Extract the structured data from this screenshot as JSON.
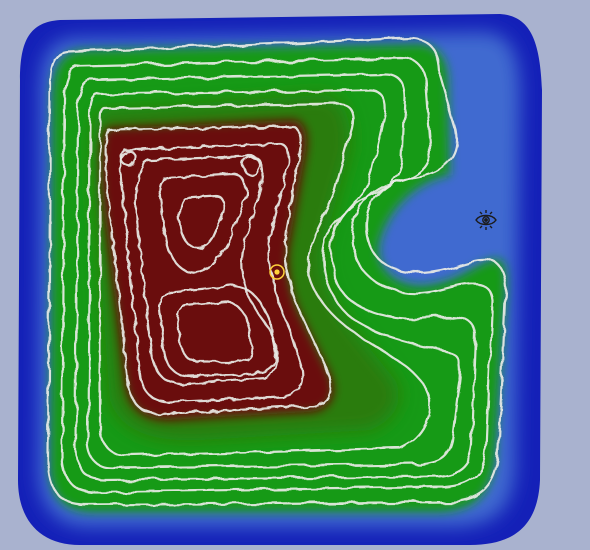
{
  "map": {
    "background_color": "#a9b2cf",
    "elevation_palette": {
      "deep_water": "#1420b8",
      "shallow_water": "#3f6ad0",
      "lowland": "#139a14",
      "midland": "#2a7c10",
      "upland": "#6b2a0d",
      "highland": "#6a0a0a"
    },
    "contour_line_color": "#e9ece6",
    "contour_interval_count": 11,
    "markers": [
      {
        "icon": "target-marker-icon",
        "color": "#ffd23a"
      },
      {
        "icon": "eye-icon",
        "color": "#1b1b1b"
      }
    ]
  }
}
